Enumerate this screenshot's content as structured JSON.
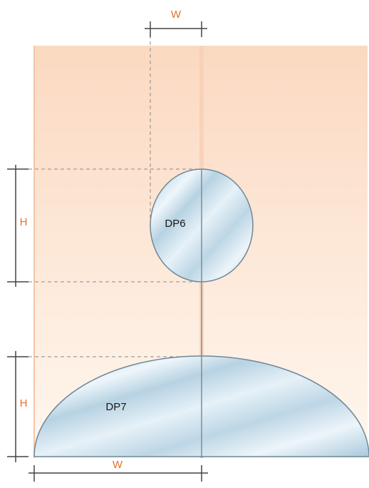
{
  "colors": {
    "panel_top": "#fbd9c1",
    "panel_bottom": "#fff7ef",
    "panel_edge": "#f4c6a6",
    "glass_light": "#eef6fb",
    "glass_dark": "#a9c9dc",
    "glass_edge": "#6f8796",
    "dimension_line": "#444444",
    "guide_dash": "#8a8a8a",
    "dimension_text": "#e8702a",
    "label_text": "#1a1a1a"
  },
  "labels": {
    "top_width": "W",
    "upper_height": "H",
    "lower_height": "H",
    "bottom_width": "W",
    "piece_circle": "DP6",
    "piece_half_ellipse": "DP7"
  }
}
